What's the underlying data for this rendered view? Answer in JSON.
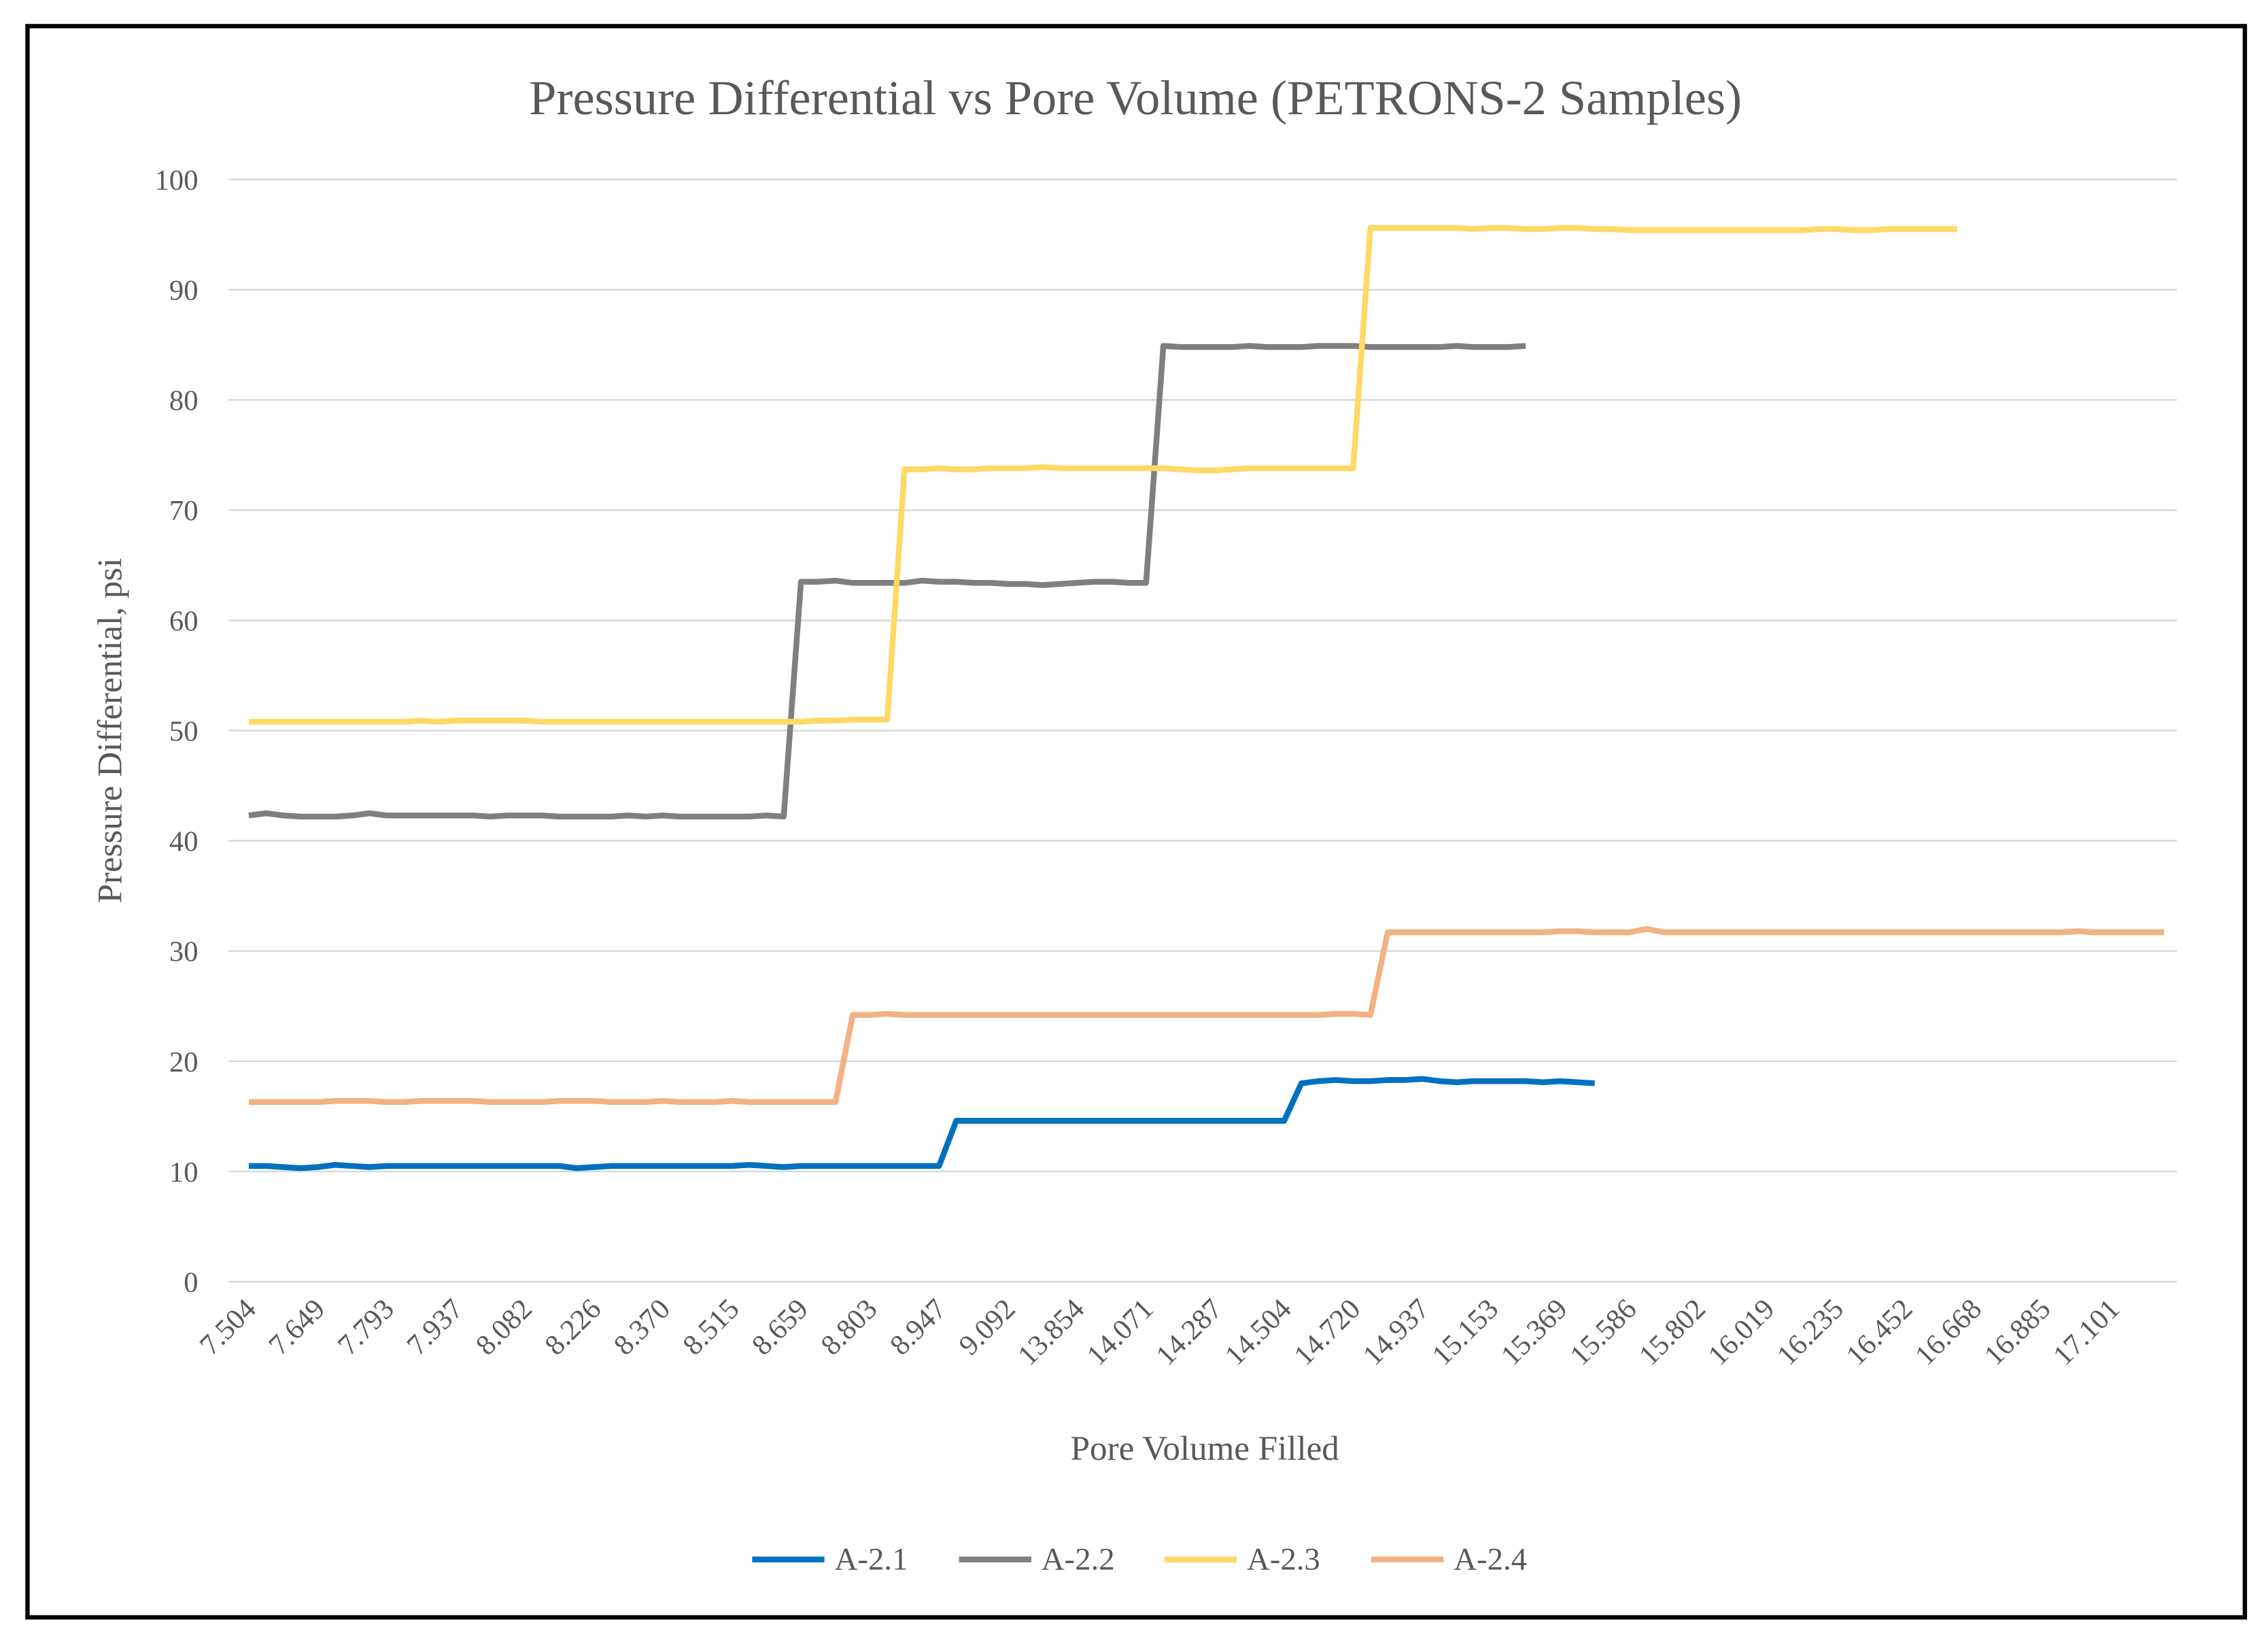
{
  "chart_data": {
    "type": "line",
    "title": "Pressure Differential vs Pore Volume (PETRONS-2  Samples)",
    "x_label": "Pore Volume Filled",
    "y_label": "Pressure Differential, psi",
    "categories": [
      "7.504",
      null,
      null,
      null,
      "7.649",
      null,
      null,
      null,
      "7.793",
      null,
      null,
      null,
      "7.937",
      null,
      null,
      null,
      "8.082",
      null,
      null,
      null,
      "8.226",
      null,
      null,
      null,
      "8.370",
      null,
      null,
      null,
      "8.515",
      null,
      null,
      null,
      "8.659",
      null,
      null,
      null,
      "8.803",
      null,
      null,
      null,
      "8.947",
      null,
      null,
      null,
      "9.092",
      null,
      null,
      null,
      "13.854",
      null,
      null,
      null,
      "14.071",
      null,
      null,
      null,
      "14.287",
      null,
      null,
      null,
      "14.504",
      null,
      null,
      null,
      "14.720",
      null,
      null,
      null,
      "14.937",
      null,
      null,
      null,
      "15.153",
      null,
      null,
      null,
      "15.369",
      null,
      null,
      null,
      "15.586",
      null,
      null,
      null,
      "15.802",
      null,
      null,
      null,
      "16.019",
      null,
      null,
      null,
      "16.235",
      null,
      null,
      null,
      "16.452",
      null,
      null,
      null,
      "16.668",
      null,
      null,
      null,
      "16.885",
      null,
      null,
      null,
      "17.101",
      null,
      null,
      null
    ],
    "series": [
      {
        "name": "A-2.1",
        "color": "#0070c0",
        "values": [
          10.5,
          10.5,
          10.4,
          10.3,
          10.4,
          10.6,
          10.5,
          10.4,
          10.5,
          10.5,
          10.5,
          10.5,
          10.5,
          10.5,
          10.5,
          10.5,
          10.5,
          10.5,
          10.5,
          10.3,
          10.4,
          10.5,
          10.5,
          10.5,
          10.5,
          10.5,
          10.5,
          10.5,
          10.5,
          10.6,
          10.5,
          10.4,
          10.5,
          10.5,
          10.5,
          10.5,
          10.5,
          10.5,
          10.5,
          10.5,
          10.5,
          14.6,
          14.6,
          14.6,
          14.6,
          14.6,
          14.6,
          14.6,
          14.6,
          14.6,
          14.6,
          14.6,
          14.6,
          14.6,
          14.6,
          14.6,
          14.6,
          14.6,
          14.6,
          14.6,
          14.6,
          18.0,
          18.2,
          18.3,
          18.2,
          18.2,
          18.3,
          18.3,
          18.4,
          18.2,
          18.1,
          18.2,
          18.2,
          18.2,
          18.2,
          18.1,
          18.2,
          18.1,
          18.0,
          null,
          null,
          null,
          null,
          null,
          null,
          null,
          null,
          null,
          null,
          null,
          null,
          null,
          null,
          null,
          null,
          null,
          null,
          null,
          null,
          null,
          null,
          null,
          null,
          null,
          null,
          null,
          null,
          null,
          null,
          null,
          null,
          null
        ]
      },
      {
        "name": "A-2.2",
        "color": "#7f7f7f",
        "values": [
          42.3,
          42.5,
          42.3,
          42.2,
          42.2,
          42.2,
          42.3,
          42.5,
          42.3,
          42.3,
          42.3,
          42.3,
          42.3,
          42.3,
          42.2,
          42.3,
          42.3,
          42.3,
          42.2,
          42.2,
          42.2,
          42.2,
          42.3,
          42.2,
          42.3,
          42.2,
          42.2,
          42.2,
          42.2,
          42.2,
          42.3,
          42.2,
          63.5,
          63.5,
          63.6,
          63.4,
          63.4,
          63.4,
          63.4,
          63.6,
          63.5,
          63.5,
          63.4,
          63.4,
          63.3,
          63.3,
          63.2,
          63.3,
          63.4,
          63.5,
          63.5,
          63.4,
          63.4,
          84.9,
          84.8,
          84.8,
          84.8,
          84.8,
          84.9,
          84.8,
          84.8,
          84.8,
          84.9,
          84.9,
          84.9,
          84.8,
          84.8,
          84.8,
          84.8,
          84.8,
          84.9,
          84.8,
          84.8,
          84.8,
          84.9,
          null,
          null,
          null,
          null,
          null,
          null,
          null,
          null,
          null,
          null,
          null,
          null,
          null,
          null,
          null,
          null,
          null,
          null,
          null,
          null,
          null,
          null,
          null,
          null,
          null,
          null,
          null,
          null,
          null,
          null,
          null,
          null,
          null,
          null,
          null,
          null,
          null
        ]
      },
      {
        "name": "A-2.3",
        "color": "#ffd966",
        "values": [
          50.8,
          50.8,
          50.8,
          50.8,
          50.8,
          50.8,
          50.8,
          50.8,
          50.8,
          50.8,
          50.9,
          50.8,
          50.9,
          50.9,
          50.9,
          50.9,
          50.9,
          50.8,
          50.8,
          50.8,
          50.8,
          50.8,
          50.8,
          50.8,
          50.8,
          50.8,
          50.8,
          50.8,
          50.8,
          50.8,
          50.8,
          50.8,
          50.8,
          50.9,
          50.9,
          51.0,
          51.0,
          51.0,
          73.7,
          73.7,
          73.8,
          73.7,
          73.7,
          73.8,
          73.8,
          73.8,
          73.9,
          73.8,
          73.8,
          73.8,
          73.8,
          73.8,
          73.8,
          73.8,
          73.7,
          73.6,
          73.6,
          73.7,
          73.8,
          73.8,
          73.8,
          73.8,
          73.8,
          73.8,
          73.8,
          95.6,
          95.6,
          95.6,
          95.6,
          95.6,
          95.6,
          95.5,
          95.6,
          95.6,
          95.5,
          95.5,
          95.6,
          95.6,
          95.5,
          95.5,
          95.4,
          95.4,
          95.4,
          95.4,
          95.4,
          95.4,
          95.4,
          95.4,
          95.4,
          95.4,
          95.4,
          95.5,
          95.5,
          95.4,
          95.4,
          95.5,
          95.5,
          95.5,
          95.5,
          95.5,
          null,
          null,
          null,
          null,
          null,
          null,
          null,
          null,
          null,
          null,
          null,
          null
        ]
      },
      {
        "name": "A-2.4",
        "color": "#f4b183",
        "values": [
          16.3,
          16.3,
          16.3,
          16.3,
          16.3,
          16.4,
          16.4,
          16.4,
          16.3,
          16.3,
          16.4,
          16.4,
          16.4,
          16.4,
          16.3,
          16.3,
          16.3,
          16.3,
          16.4,
          16.4,
          16.4,
          16.3,
          16.3,
          16.3,
          16.4,
          16.3,
          16.3,
          16.3,
          16.4,
          16.3,
          16.3,
          16.3,
          16.3,
          16.3,
          16.3,
          24.2,
          24.2,
          24.3,
          24.2,
          24.2,
          24.2,
          24.2,
          24.2,
          24.2,
          24.2,
          24.2,
          24.2,
          24.2,
          24.2,
          24.2,
          24.2,
          24.2,
          24.2,
          24.2,
          24.2,
          24.2,
          24.2,
          24.2,
          24.2,
          24.2,
          24.2,
          24.2,
          24.2,
          24.3,
          24.3,
          24.2,
          31.7,
          31.7,
          31.7,
          31.7,
          31.7,
          31.7,
          31.7,
          31.7,
          31.7,
          31.7,
          31.8,
          31.8,
          31.7,
          31.7,
          31.7,
          32.0,
          31.7,
          31.7,
          31.7,
          31.7,
          31.7,
          31.7,
          31.7,
          31.7,
          31.7,
          31.7,
          31.7,
          31.7,
          31.7,
          31.7,
          31.7,
          31.7,
          31.7,
          31.7,
          31.7,
          31.7,
          31.7,
          31.7,
          31.7,
          31.7,
          31.8,
          31.7,
          31.7,
          31.7,
          31.7,
          31.7
        ]
      }
    ],
    "ylim": [
      0,
      100
    ],
    "yticks": [
      0,
      10,
      20,
      30,
      40,
      50,
      60,
      70,
      80,
      90,
      100
    ],
    "grid": true,
    "legend": "bottom"
  }
}
